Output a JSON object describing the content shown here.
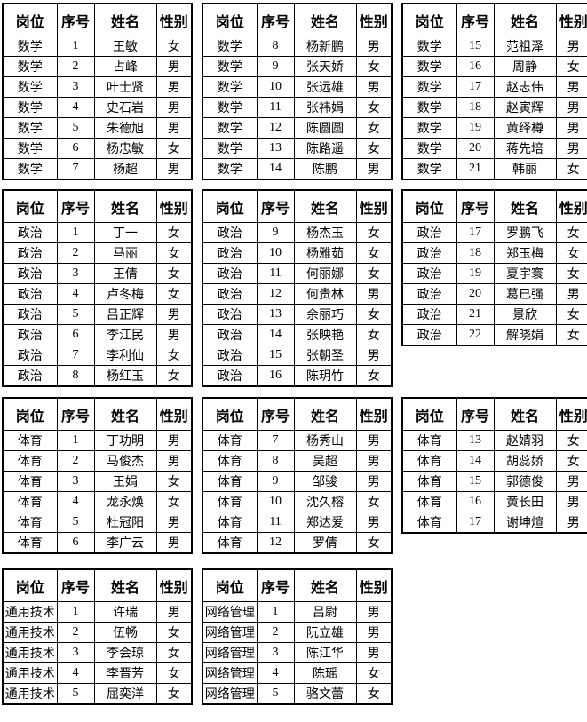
{
  "page": {
    "background_color": "#ffffff",
    "border_color": "#000000",
    "text_color": "#000000"
  },
  "columns": [
    "岗位",
    "序号",
    "姓名",
    "性别"
  ],
  "table_rows": [
    [
      {
        "id": "math-1",
        "rows": [
          [
            "数学",
            "1",
            "王敏",
            "女"
          ],
          [
            "数学",
            "2",
            "占峰",
            "男"
          ],
          [
            "数学",
            "3",
            "叶士贤",
            "男"
          ],
          [
            "数学",
            "4",
            "史石岩",
            "男"
          ],
          [
            "数学",
            "5",
            "朱德旭",
            "男"
          ],
          [
            "数学",
            "6",
            "杨忠敏",
            "女"
          ],
          [
            "数学",
            "7",
            "杨超",
            "男"
          ]
        ]
      },
      {
        "id": "math-2",
        "rows": [
          [
            "数学",
            "8",
            "杨新鹏",
            "男"
          ],
          [
            "数学",
            "9",
            "张天娇",
            "女"
          ],
          [
            "数学",
            "10",
            "张远雄",
            "男"
          ],
          [
            "数学",
            "11",
            "张祎娟",
            "女"
          ],
          [
            "数学",
            "12",
            "陈圆圆",
            "女"
          ],
          [
            "数学",
            "13",
            "陈路遥",
            "女"
          ],
          [
            "数学",
            "14",
            "陈鹏",
            "男"
          ]
        ]
      },
      {
        "id": "math-3",
        "rows": [
          [
            "数学",
            "15",
            "范祖泽",
            "男"
          ],
          [
            "数学",
            "16",
            "周静",
            "女"
          ],
          [
            "数学",
            "17",
            "赵志伟",
            "男"
          ],
          [
            "数学",
            "18",
            "赵寅辉",
            "男"
          ],
          [
            "数学",
            "19",
            "黄绎樽",
            "男"
          ],
          [
            "数学",
            "20",
            "蒋先培",
            "男"
          ],
          [
            "数学",
            "21",
            "韩丽",
            "女"
          ]
        ]
      }
    ],
    [
      {
        "id": "politics-1",
        "rows": [
          [
            "政治",
            "1",
            "丁一",
            "女"
          ],
          [
            "政治",
            "2",
            "马丽",
            "女"
          ],
          [
            "政治",
            "3",
            "王倩",
            "女"
          ],
          [
            "政治",
            "4",
            "卢冬梅",
            "女"
          ],
          [
            "政治",
            "5",
            "吕正辉",
            "男"
          ],
          [
            "政治",
            "6",
            "李江民",
            "男"
          ],
          [
            "政治",
            "7",
            "李利仙",
            "女"
          ],
          [
            "政治",
            "8",
            "杨红玉",
            "女"
          ]
        ]
      },
      {
        "id": "politics-2",
        "rows": [
          [
            "政治",
            "9",
            "杨杰玉",
            "女"
          ],
          [
            "政治",
            "10",
            "杨雅茹",
            "女"
          ],
          [
            "政治",
            "11",
            "何丽娜",
            "女"
          ],
          [
            "政治",
            "12",
            "何贵林",
            "男"
          ],
          [
            "政治",
            "13",
            "余丽巧",
            "女"
          ],
          [
            "政治",
            "14",
            "张映艳",
            "女"
          ],
          [
            "政治",
            "15",
            "张朝圣",
            "男"
          ],
          [
            "政治",
            "16",
            "陈玥竹",
            "女"
          ]
        ]
      },
      {
        "id": "politics-3",
        "rows": [
          [
            "政治",
            "17",
            "罗鹏飞",
            "女"
          ],
          [
            "政治",
            "18",
            "郑玉梅",
            "女"
          ],
          [
            "政治",
            "19",
            "夏宇寰",
            "女"
          ],
          [
            "政治",
            "20",
            "葛已强",
            "男"
          ],
          [
            "政治",
            "21",
            "景欣",
            "女"
          ],
          [
            "政治",
            "22",
            "解晓娟",
            "女"
          ]
        ]
      }
    ],
    [
      {
        "id": "pe-1",
        "rows": [
          [
            "体育",
            "1",
            "丁功明",
            "男"
          ],
          [
            "体育",
            "2",
            "马俊杰",
            "男"
          ],
          [
            "体育",
            "3",
            "王娟",
            "女"
          ],
          [
            "体育",
            "4",
            "龙永焕",
            "女"
          ],
          [
            "体育",
            "5",
            "杜冠阳",
            "男"
          ],
          [
            "体育",
            "6",
            "李广云",
            "男"
          ]
        ]
      },
      {
        "id": "pe-2",
        "rows": [
          [
            "体育",
            "7",
            "杨秀山",
            "男"
          ],
          [
            "体育",
            "8",
            "吴超",
            "男"
          ],
          [
            "体育",
            "9",
            "邹骏",
            "男"
          ],
          [
            "体育",
            "10",
            "沈久榕",
            "女"
          ],
          [
            "体育",
            "11",
            "郑达爱",
            "男"
          ],
          [
            "体育",
            "12",
            "罗倩",
            "女"
          ]
        ]
      },
      {
        "id": "pe-3",
        "rows": [
          [
            "体育",
            "13",
            "赵婧羽",
            "女"
          ],
          [
            "体育",
            "14",
            "胡蕊娇",
            "女"
          ],
          [
            "体育",
            "15",
            "郭德俊",
            "男"
          ],
          [
            "体育",
            "16",
            "黄长田",
            "男"
          ],
          [
            "体育",
            "17",
            "谢坤煊",
            "男"
          ]
        ]
      }
    ],
    [
      {
        "id": "general-tech",
        "rows": [
          [
            "通用技术",
            "1",
            "许瑞",
            "男"
          ],
          [
            "通用技术",
            "2",
            "伍畅",
            "女"
          ],
          [
            "通用技术",
            "3",
            "李会琼",
            "女"
          ],
          [
            "通用技术",
            "4",
            "李晋芳",
            "女"
          ],
          [
            "通用技术",
            "5",
            "屈奕洋",
            "女"
          ]
        ]
      },
      {
        "id": "network-admin",
        "rows": [
          [
            "网络管理",
            "1",
            "吕尉",
            "男"
          ],
          [
            "网络管理",
            "2",
            "阮立雄",
            "男"
          ],
          [
            "网络管理",
            "3",
            "陈江华",
            "男"
          ],
          [
            "网络管理",
            "4",
            "陈瑶",
            "女"
          ],
          [
            "网络管理",
            "5",
            "骆文蕾",
            "女"
          ]
        ]
      }
    ]
  ]
}
